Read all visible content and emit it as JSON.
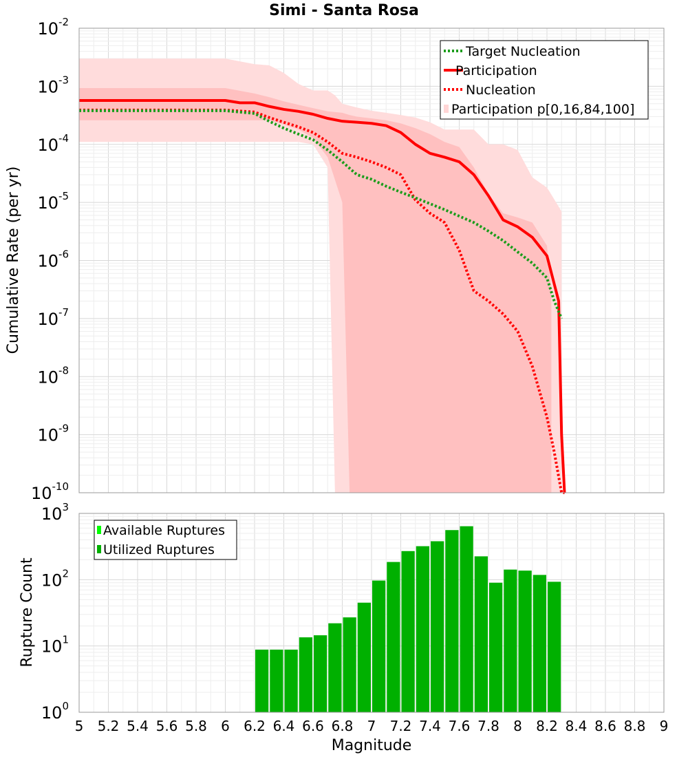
{
  "title": "Simi - Santa Rosa",
  "chart_data": [
    {
      "type": "line",
      "title": "Simi - Santa Rosa",
      "xlabel": "",
      "ylabel": "Cumulative Rate (per yr)",
      "xlim": [
        5,
        9
      ],
      "ylim": [
        1e-10,
        0.01
      ],
      "yscale": "log",
      "ytick_labels": [
        {
          "base": "10",
          "exp": "-10",
          "value": 1e-10
        },
        {
          "base": "10",
          "exp": "-9",
          "value": 1e-09
        },
        {
          "base": "10",
          "exp": "-8",
          "value": 1e-08
        },
        {
          "base": "10",
          "exp": "-7",
          "value": 1e-07
        },
        {
          "base": "10",
          "exp": "-6",
          "value": 1e-06
        },
        {
          "base": "10",
          "exp": "-5",
          "value": 1e-05
        },
        {
          "base": "10",
          "exp": "-4",
          "value": 0.0001
        },
        {
          "base": "10",
          "exp": "-3",
          "value": 0.001
        },
        {
          "base": "10",
          "exp": "-2",
          "value": 0.01
        }
      ],
      "grid": true,
      "legend_position": "top-right",
      "legend": [
        {
          "label": "Target Nucleation",
          "color": "#1a9c1a",
          "style": "dotted"
        },
        {
          "label": "Participation",
          "color": "#ff0000",
          "style": "solid"
        },
        {
          "label": "Nucleation",
          "color": "#ff0000",
          "style": "dotted"
        },
        {
          "label": "Participation p[0,16,84,100]",
          "color": "#ffd6d6",
          "style": "box"
        }
      ],
      "bands": [
        {
          "name": "p[0,100]",
          "color": "#ffdcdc",
          "x": [
            5.0,
            6.0,
            6.2,
            6.3,
            6.4,
            6.5,
            6.6,
            6.7,
            6.75,
            6.8,
            6.9,
            7.0,
            7.1,
            7.2,
            7.3,
            7.4,
            7.5,
            7.6,
            7.7,
            7.8,
            7.9,
            8.0,
            8.1,
            8.2,
            8.22,
            8.3
          ],
          "upper": [
            0.003,
            0.003,
            0.0024,
            0.0023,
            0.0017,
            0.0011,
            0.00085,
            0.00085,
            0.0007,
            0.0005,
            0.00043,
            0.00038,
            0.00035,
            0.00032,
            0.00029,
            0.00024,
            0.00018,
            0.00018,
            0.00018,
            0.0001,
            0.0001,
            8e-05,
            2.7e-05,
            1.8e-05,
            1.5e-05,
            7e-06
          ],
          "lower": [
            0.00011,
            0.00011,
            0.00011,
            0.00011,
            0.00011,
            0.00011,
            0.0001,
            4e-05,
            1e-10,
            1e-10,
            1e-10,
            1e-10,
            1e-10,
            1e-10,
            1e-10,
            1e-10,
            1e-10,
            1e-10,
            1e-10,
            1e-10,
            1e-10,
            1e-10,
            1e-10,
            1e-10,
            1e-10,
            1e-10
          ]
        },
        {
          "name": "p[16,84]",
          "color": "#ffc0c0",
          "x": [
            5.0,
            6.0,
            6.2,
            6.3,
            6.4,
            6.5,
            6.6,
            6.7,
            6.8,
            6.85,
            6.9,
            7.0,
            7.1,
            7.2,
            7.3,
            7.4,
            7.5,
            7.6,
            7.7,
            7.8,
            7.9,
            8.0,
            8.1,
            8.2,
            8.23
          ],
          "upper": [
            0.00093,
            0.00093,
            0.00075,
            0.00065,
            0.00055,
            0.00048,
            0.00042,
            0.00037,
            0.00035,
            0.00032,
            0.0003,
            0.00028,
            0.00026,
            0.00023,
            0.00019,
            0.00015,
            0.00011,
            9e-05,
            4e-05,
            1.4e-05,
            6.5e-06,
            5.5e-06,
            4.5e-06,
            1.8e-06,
            3e-07
          ],
          "lower": [
            0.00026,
            0.00026,
            0.00026,
            0.00026,
            0.00022,
            0.00018,
            0.00013,
            6e-05,
            1e-05,
            1e-10,
            1e-10,
            1e-10,
            1e-10,
            1e-10,
            1e-10,
            1e-10,
            1e-10,
            1e-10,
            1e-10,
            1e-10,
            1e-10,
            1e-10,
            1e-10,
            1e-10,
            1e-10
          ]
        }
      ],
      "series": [
        {
          "name": "Participation",
          "color": "#ff0000",
          "style": "solid",
          "x": [
            5.0,
            6.0,
            6.1,
            6.2,
            6.3,
            6.4,
            6.5,
            6.6,
            6.7,
            6.8,
            6.9,
            7.0,
            7.1,
            7.2,
            7.3,
            7.4,
            7.5,
            7.6,
            7.7,
            7.8,
            7.9,
            8.0,
            8.1,
            8.2,
            8.28,
            8.3,
            8.32
          ],
          "y": [
            0.00057,
            0.00057,
            0.00052,
            0.00052,
            0.00045,
            0.0004,
            0.00037,
            0.00033,
            0.00028,
            0.00025,
            0.00024,
            0.00023,
            0.00021,
            0.00016,
            0.0001,
            7e-05,
            6e-05,
            5e-05,
            3e-05,
            1.3e-05,
            5e-06,
            3.8e-06,
            2.5e-06,
            1.2e-06,
            2e-07,
            1e-09,
            1e-10
          ]
        },
        {
          "name": "Nucleation",
          "color": "#ff0000",
          "style": "dotted",
          "x": [
            5.0,
            6.0,
            6.2,
            6.3,
            6.4,
            6.5,
            6.6,
            6.7,
            6.8,
            6.9,
            7.0,
            7.1,
            7.2,
            7.3,
            7.4,
            7.5,
            7.6,
            7.7,
            7.8,
            7.9,
            8.0,
            8.1,
            8.2,
            8.25,
            8.3,
            8.32
          ],
          "y": [
            0.00039,
            0.00039,
            0.00036,
            0.00029,
            0.00024,
            0.0002,
            0.00016,
            0.00011,
            7e-05,
            6e-05,
            5e-05,
            4e-05,
            3e-05,
            1.1e-05,
            6.5e-06,
            4.5e-06,
            1.5e-06,
            3e-07,
            2e-07,
            1.2e-07,
            6e-08,
            1.5e-08,
            2e-09,
            5e-10,
            1e-10,
            1e-10
          ]
        },
        {
          "name": "Target Nucleation",
          "color": "#1a9c1a",
          "style": "dotted",
          "x": [
            5.0,
            6.0,
            6.2,
            6.3,
            6.4,
            6.5,
            6.6,
            6.7,
            6.8,
            6.9,
            7.0,
            7.1,
            7.2,
            7.3,
            7.4,
            7.5,
            7.6,
            7.7,
            7.8,
            7.9,
            8.0,
            8.1,
            8.2,
            8.25,
            8.3
          ],
          "y": [
            0.00038,
            0.00038,
            0.00034,
            0.00025,
            0.00019,
            0.00015,
            0.00012,
            8e-05,
            5e-05,
            3e-05,
            2.5e-05,
            1.9e-05,
            1.5e-05,
            1.2e-05,
            9.5e-06,
            7.5e-06,
            5.8e-06,
            4.5e-06,
            3.2e-06,
            2.2e-06,
            1.4e-06,
            9e-07,
            5e-07,
            2e-07,
            1e-07
          ]
        }
      ]
    },
    {
      "type": "bar",
      "xlabel": "Magnitude",
      "ylabel": "Rupture Count",
      "xlim": [
        5,
        9
      ],
      "ylim": [
        1,
        1000
      ],
      "yscale": "log",
      "ytick_labels": [
        {
          "base": "10",
          "exp": "0",
          "value": 1
        },
        {
          "base": "10",
          "exp": "1",
          "value": 10
        },
        {
          "base": "10",
          "exp": "2",
          "value": 100
        },
        {
          "base": "10",
          "exp": "3",
          "value": 1000
        }
      ],
      "xtick_labels": [
        "5",
        "5.2",
        "5.4",
        "5.6",
        "5.8",
        "6",
        "6.2",
        "6.4",
        "6.6",
        "6.8",
        "7",
        "7.2",
        "7.4",
        "7.6",
        "7.8",
        "8",
        "8.2",
        "8.4",
        "8.6",
        "8.8",
        "9"
      ],
      "grid": true,
      "legend_position": "top-left",
      "legend": [
        {
          "label": "Available Ruptures",
          "color": "#00ff00"
        },
        {
          "label": "Utilized Ruptures",
          "color": "#00b000"
        }
      ],
      "bar_width": 0.1,
      "bar_color": "#00b000",
      "bars": [
        {
          "x": 6.25,
          "value": 8.8
        },
        {
          "x": 6.35,
          "value": 8.8
        },
        {
          "x": 6.45,
          "value": 8.8
        },
        {
          "x": 6.55,
          "value": 13.5
        },
        {
          "x": 6.65,
          "value": 14.5
        },
        {
          "x": 6.75,
          "value": 22
        },
        {
          "x": 6.85,
          "value": 27
        },
        {
          "x": 6.95,
          "value": 45
        },
        {
          "x": 7.05,
          "value": 97
        },
        {
          "x": 7.15,
          "value": 185
        },
        {
          "x": 7.25,
          "value": 270
        },
        {
          "x": 7.35,
          "value": 320
        },
        {
          "x": 7.45,
          "value": 380
        },
        {
          "x": 7.55,
          "value": 560
        },
        {
          "x": 7.65,
          "value": 640
        },
        {
          "x": 7.75,
          "value": 225
        },
        {
          "x": 7.85,
          "value": 90
        },
        {
          "x": 7.95,
          "value": 142
        },
        {
          "x": 8.05,
          "value": 137
        },
        {
          "x": 8.15,
          "value": 118
        },
        {
          "x": 8.25,
          "value": 93
        }
      ]
    }
  ]
}
